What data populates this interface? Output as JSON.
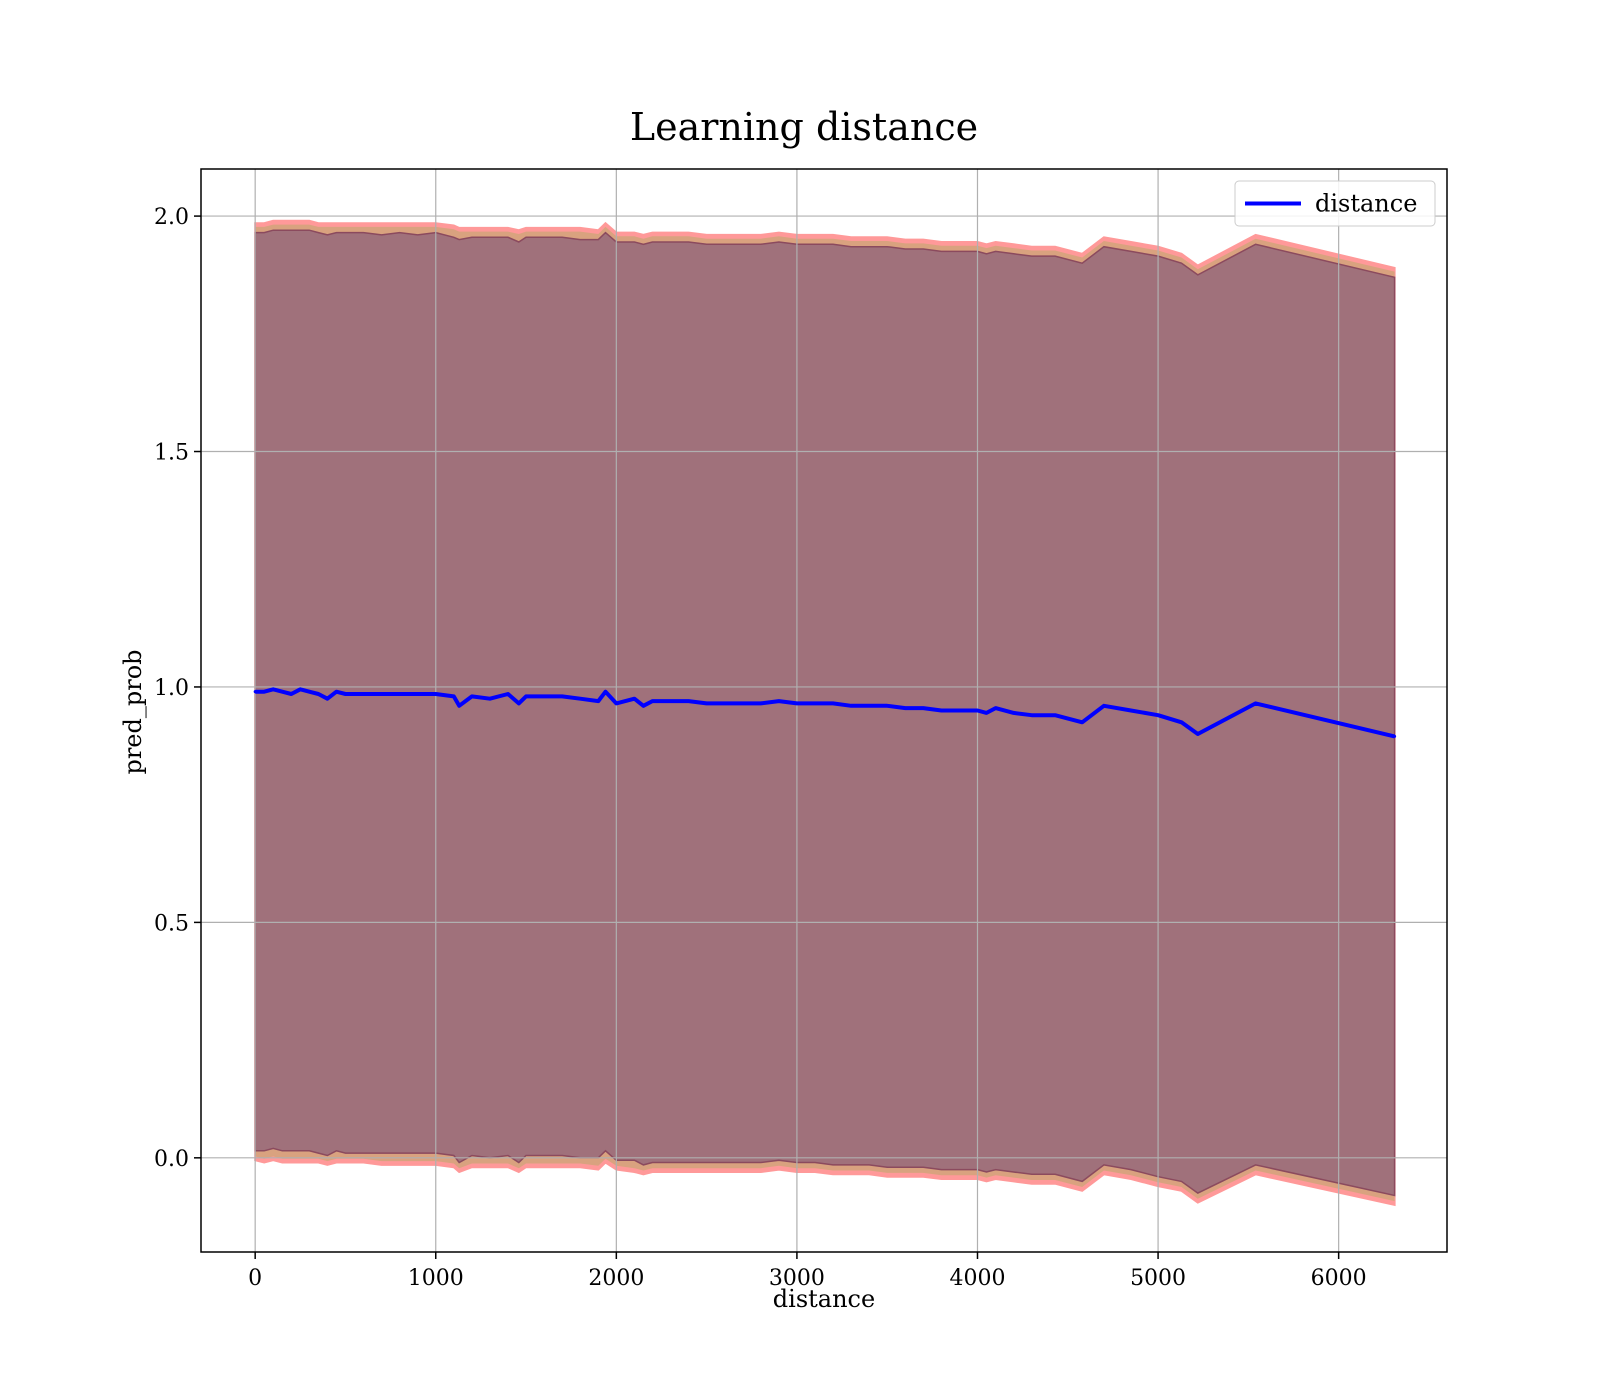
{
  "chart_data": {
    "type": "line",
    "title": "Learning distance",
    "xlabel": "distance",
    "ylabel": "pred_prob",
    "xlim": [
      -300,
      6600
    ],
    "ylim": [
      -0.2,
      2.1
    ],
    "xticks": [
      0,
      1000,
      2000,
      3000,
      4000,
      5000,
      6000
    ],
    "xtick_labels": [
      "0",
      "1000",
      "2000",
      "3000",
      "4000",
      "5000",
      "6000"
    ],
    "yticks": [
      0.0,
      0.5,
      1.0,
      1.5,
      2.0
    ],
    "ytick_labels": [
      "0.0",
      "0.5",
      "1.0",
      "1.5",
      "2.0"
    ],
    "grid": true,
    "legend": {
      "position": "top-right",
      "entries": [
        "distance"
      ]
    },
    "colors": {
      "line": "#0000ff",
      "band_outer": "#ff9999",
      "band_middle": "#d9a27f",
      "band_inner": "#8b4a5e"
    },
    "series": [
      {
        "name": "distance",
        "x": [
          0,
          50,
          100,
          150,
          200,
          250,
          300,
          350,
          400,
          450,
          500,
          600,
          700,
          800,
          900,
          1000,
          1100,
          1130,
          1200,
          1300,
          1400,
          1460,
          1500,
          1600,
          1700,
          1800,
          1900,
          1940,
          2000,
          2100,
          2150,
          2200,
          2300,
          2400,
          2500,
          2600,
          2700,
          2800,
          2900,
          3000,
          3100,
          3200,
          3300,
          3400,
          3500,
          3600,
          3700,
          3800,
          3900,
          4000,
          4050,
          4100,
          4200,
          4300,
          4430,
          4580,
          4700,
          4850,
          5000,
          5130,
          5220,
          5540,
          6310
        ],
        "values": [
          0.99,
          0.99,
          0.995,
          0.99,
          0.985,
          0.995,
          0.99,
          0.985,
          0.975,
          0.99,
          0.985,
          0.985,
          0.985,
          0.985,
          0.985,
          0.985,
          0.98,
          0.96,
          0.98,
          0.975,
          0.985,
          0.965,
          0.98,
          0.98,
          0.98,
          0.975,
          0.97,
          0.99,
          0.965,
          0.975,
          0.96,
          0.97,
          0.97,
          0.97,
          0.965,
          0.965,
          0.965,
          0.965,
          0.97,
          0.965,
          0.965,
          0.965,
          0.96,
          0.96,
          0.96,
          0.955,
          0.955,
          0.95,
          0.95,
          0.95,
          0.945,
          0.955,
          0.945,
          0.94,
          0.94,
          0.925,
          0.96,
          0.95,
          0.94,
          0.925,
          0.9,
          0.965,
          0.895
        ],
        "band_outer_upper": [
          1.985,
          1.985,
          1.99,
          1.99,
          1.99,
          1.99,
          1.99,
          1.985,
          1.985,
          1.985,
          1.985,
          1.985,
          1.985,
          1.985,
          1.985,
          1.985,
          1.98,
          1.975,
          1.975,
          1.975,
          1.975,
          1.97,
          1.975,
          1.975,
          1.975,
          1.975,
          1.97,
          1.985,
          1.965,
          1.965,
          1.96,
          1.965,
          1.965,
          1.965,
          1.96,
          1.96,
          1.96,
          1.96,
          1.965,
          1.96,
          1.96,
          1.96,
          1.955,
          1.955,
          1.955,
          1.95,
          1.95,
          1.945,
          1.945,
          1.945,
          1.94,
          1.945,
          1.94,
          1.935,
          1.935,
          1.92,
          1.955,
          1.945,
          1.935,
          1.92,
          1.895,
          1.96,
          1.89
        ],
        "band_outer_lower": [
          -0.005,
          -0.01,
          -0.005,
          -0.01,
          -0.01,
          -0.01,
          -0.01,
          -0.01,
          -0.015,
          -0.01,
          -0.01,
          -0.01,
          -0.015,
          -0.015,
          -0.015,
          -0.015,
          -0.02,
          -0.03,
          -0.02,
          -0.02,
          -0.02,
          -0.03,
          -0.02,
          -0.02,
          -0.02,
          -0.02,
          -0.025,
          -0.01,
          -0.025,
          -0.03,
          -0.035,
          -0.03,
          -0.03,
          -0.03,
          -0.03,
          -0.03,
          -0.03,
          -0.03,
          -0.025,
          -0.03,
          -0.03,
          -0.035,
          -0.035,
          -0.035,
          -0.04,
          -0.04,
          -0.04,
          -0.045,
          -0.045,
          -0.045,
          -0.05,
          -0.045,
          -0.05,
          -0.055,
          -0.055,
          -0.07,
          -0.035,
          -0.045,
          -0.06,
          -0.07,
          -0.095,
          -0.035,
          -0.1
        ],
        "band_inner_upper": [
          1.965,
          1.965,
          1.97,
          1.97,
          1.97,
          1.97,
          1.97,
          1.965,
          1.96,
          1.965,
          1.965,
          1.965,
          1.96,
          1.965,
          1.96,
          1.965,
          1.955,
          1.95,
          1.955,
          1.955,
          1.955,
          1.945,
          1.955,
          1.955,
          1.955,
          1.95,
          1.95,
          1.965,
          1.945,
          1.945,
          1.94,
          1.945,
          1.945,
          1.945,
          1.94,
          1.94,
          1.94,
          1.94,
          1.945,
          1.94,
          1.94,
          1.94,
          1.935,
          1.935,
          1.935,
          1.93,
          1.93,
          1.925,
          1.925,
          1.925,
          1.92,
          1.925,
          1.92,
          1.915,
          1.915,
          1.9,
          1.935,
          1.925,
          1.915,
          1.9,
          1.875,
          1.94,
          1.87
        ],
        "band_inner_lower": [
          0.015,
          0.015,
          0.02,
          0.015,
          0.015,
          0.015,
          0.015,
          0.01,
          0.005,
          0.015,
          0.01,
          0.01,
          0.01,
          0.01,
          0.01,
          0.01,
          0.005,
          -0.01,
          0.005,
          0.0,
          0.005,
          -0.01,
          0.005,
          0.005,
          0.005,
          0.0,
          0.0,
          0.015,
          -0.005,
          -0.005,
          -0.015,
          -0.01,
          -0.01,
          -0.01,
          -0.01,
          -0.01,
          -0.01,
          -0.01,
          -0.005,
          -0.01,
          -0.01,
          -0.015,
          -0.015,
          -0.015,
          -0.02,
          -0.02,
          -0.02,
          -0.025,
          -0.025,
          -0.025,
          -0.03,
          -0.025,
          -0.03,
          -0.035,
          -0.035,
          -0.05,
          -0.015,
          -0.025,
          -0.04,
          -0.05,
          -0.075,
          -0.015,
          -0.08
        ]
      }
    ]
  }
}
